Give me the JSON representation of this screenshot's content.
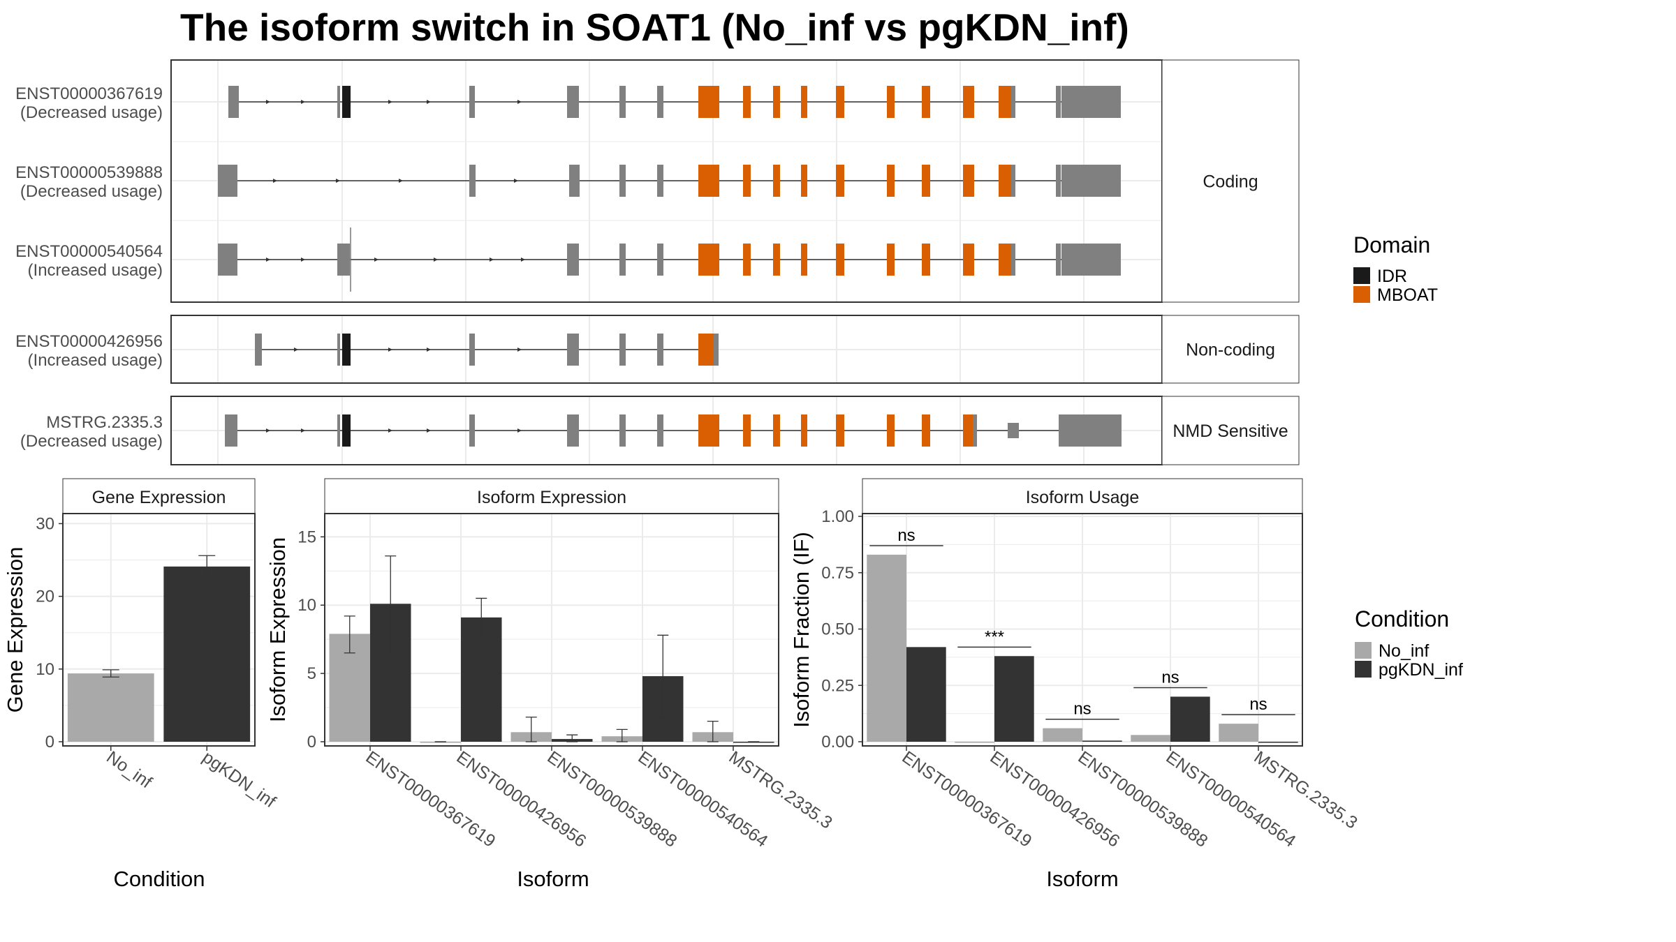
{
  "title": "The isoform switch in SOAT1 (No_inf vs pgKDN_inf)",
  "colors": {
    "exon": "#808080",
    "idr": "#1a1a1a",
    "mboat": "#d95f02",
    "no_inf": "#a9a9a9",
    "pgkdn_inf": "#333333",
    "grid": "#ebebeb",
    "strip_bg": "#ffffff"
  },
  "transcripts": {
    "panels": [
      {
        "strip": "Coding",
        "rows": [
          {
            "id": "ENST00000367619",
            "note": "(Decreased usage)",
            "model": "full"
          },
          {
            "id": "ENST00000539888",
            "note": "(Decreased usage)",
            "model": "alt"
          },
          {
            "id": "ENST00000540564",
            "note": "(Increased usage)",
            "model": "inc"
          }
        ]
      },
      {
        "strip": "Non-coding",
        "rows": [
          {
            "id": "ENST00000426956",
            "note": "(Increased usage)",
            "model": "short"
          }
        ]
      },
      {
        "strip": "NMD Sensitive",
        "rows": [
          {
            "id": "MSTRG.2335.3",
            "note": "(Decreased usage)",
            "model": "nmd"
          }
        ]
      }
    ],
    "legend_title": "Domain",
    "legend": [
      {
        "label": "IDR",
        "color": "#1a1a1a"
      },
      {
        "label": "MBOAT",
        "color": "#d95f02"
      }
    ]
  },
  "chart_data": [
    {
      "type": "bar",
      "title": "Gene Expression",
      "xlabel": "Condition",
      "ylabel": "Gene Expression",
      "ylim": [
        0,
        31
      ],
      "yticks": [
        0,
        10,
        20,
        30
      ],
      "categories": [
        "No_inf",
        "pgKDN_inf"
      ],
      "values": [
        9.4,
        24.1
      ],
      "errors": [
        [
          8.9,
          9.9
        ],
        [
          22.6,
          25.6
        ]
      ],
      "colors": [
        "#a9a9a9",
        "#333333"
      ]
    },
    {
      "type": "bar",
      "title": "Isoform Expression",
      "xlabel": "Isoform",
      "ylabel": "Isoform Expression",
      "ylim": [
        0,
        16.5
      ],
      "yticks": [
        0,
        5,
        10,
        15
      ],
      "categories": [
        "ENST00000367619",
        "ENST00000426956",
        "ENST00000539888",
        "ENST00000540564",
        "MSTRG.2335.3"
      ],
      "series": [
        {
          "name": "No_inf",
          "values": [
            7.9,
            0.0,
            0.7,
            0.4,
            0.7
          ],
          "errors": [
            [
              6.5,
              9.2
            ],
            [
              0,
              0
            ],
            [
              0,
              1.8
            ],
            [
              0,
              0.9
            ],
            [
              0,
              1.5
            ]
          ]
        },
        {
          "name": "pgKDN_inf",
          "values": [
            10.1,
            9.1,
            0.2,
            4.8,
            0.0
          ],
          "errors": [
            [
              6.5,
              13.6
            ],
            [
              7.7,
              10.5
            ],
            [
              0,
              0.5
            ],
            [
              1.8,
              7.8
            ],
            [
              0,
              0
            ]
          ]
        }
      ]
    },
    {
      "type": "bar",
      "title": "Isoform Usage",
      "xlabel": "Isoform",
      "ylabel": "Isoform Fraction (IF)",
      "ylim": [
        0,
        1.0
      ],
      "yticks": [
        "0.00",
        "0.25",
        "0.50",
        "0.75",
        "1.00"
      ],
      "categories": [
        "ENST00000367619",
        "ENST00000426956",
        "ENST00000539888",
        "ENST00000540564",
        "MSTRG.2335.3"
      ],
      "series": [
        {
          "name": "No_inf",
          "values": [
            0.83,
            0.0,
            0.06,
            0.03,
            0.08
          ]
        },
        {
          "name": "pgKDN_inf",
          "values": [
            0.42,
            0.38,
            0.005,
            0.2,
            0.0
          ]
        }
      ],
      "significance": [
        "ns",
        "***",
        "ns",
        "ns",
        "ns"
      ],
      "sig_level": [
        0.87,
        0.42,
        0.1,
        0.24,
        0.12
      ]
    }
  ],
  "condition_legend": {
    "title": "Condition",
    "items": [
      {
        "label": "No_inf",
        "color": "#a9a9a9"
      },
      {
        "label": "pgKDN_inf",
        "color": "#333333"
      }
    ]
  }
}
